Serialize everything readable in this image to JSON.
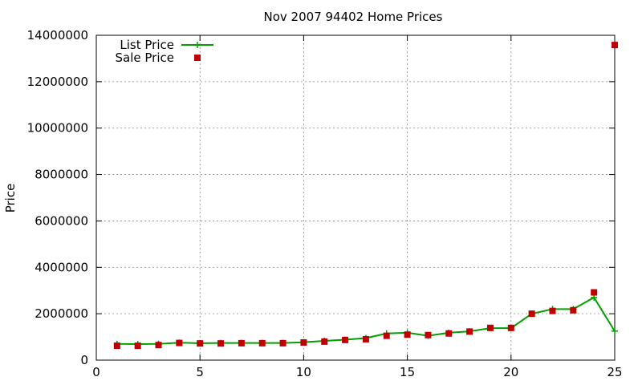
{
  "chart_data": {
    "type": "line",
    "title": "Nov 2007 94402 Home Prices",
    "xlabel": "",
    "ylabel": "Price",
    "xlim": [
      0,
      25
    ],
    "ylim": [
      0,
      14000000
    ],
    "xticks": [
      "0",
      "5",
      "10",
      "15",
      "20",
      "25"
    ],
    "yticks": [
      "0",
      "2000000",
      "4000000",
      "6000000",
      "8000000",
      "10000000",
      "12000000",
      "14000000"
    ],
    "grid": true,
    "legend_position": "top-left",
    "series": [
      {
        "name": "List Price",
        "style": "line+plus",
        "color": "#00a000",
        "x": [
          1,
          2,
          3,
          4,
          5,
          6,
          7,
          8,
          9,
          10,
          11,
          12,
          13,
          14,
          15,
          16,
          17,
          18,
          19,
          20,
          21,
          22,
          23,
          24,
          25
        ],
        "values": [
          700000,
          690000,
          700000,
          750000,
          730000,
          740000,
          740000,
          740000,
          740000,
          770000,
          830000,
          880000,
          950000,
          1150000,
          1180000,
          1050000,
          1180000,
          1240000,
          1380000,
          1380000,
          2000000,
          2200000,
          2200000,
          2700000,
          1250000
        ]
      },
      {
        "name": "Sale Price",
        "style": "square",
        "color": "#c00000",
        "x": [
          1,
          2,
          3,
          4,
          5,
          6,
          7,
          8,
          9,
          10,
          11,
          12,
          13,
          14,
          15,
          16,
          17,
          18,
          19,
          20,
          21,
          22,
          23,
          24,
          25
        ],
        "values": [
          620000,
          620000,
          650000,
          740000,
          720000,
          720000,
          730000,
          730000,
          730000,
          760000,
          800000,
          870000,
          900000,
          1050000,
          1100000,
          1080000,
          1150000,
          1230000,
          1390000,
          1390000,
          2000000,
          2120000,
          2150000,
          2920000,
          13580000
        ]
      }
    ]
  }
}
